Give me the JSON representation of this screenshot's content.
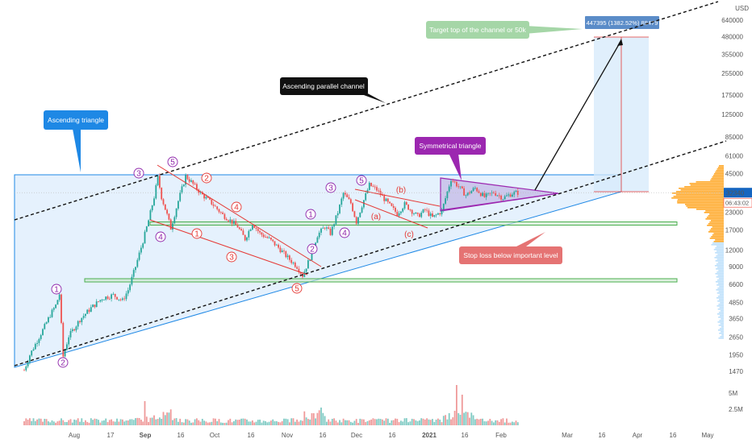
{
  "chart_data": {
    "type": "candlestick",
    "y_scale": "log",
    "currency": "USD",
    "y_ticks": [
      "640000",
      "480000",
      "355000",
      "255000",
      "175000",
      "125000",
      "85000",
      "61000",
      "45000",
      "32000",
      "23000",
      "17000",
      "12000",
      "9000",
      "6600",
      "4850",
      "3650",
      "2650",
      "1950",
      "1470"
    ],
    "y_tick_values": [
      640000,
      480000,
      355000,
      255000,
      175000,
      125000,
      85000,
      61000,
      45000,
      32000,
      23000,
      17000,
      12000,
      9000,
      6600,
      4850,
      3650,
      2650,
      1950,
      1470
    ],
    "x_ticks": [
      "Aug",
      "17",
      "Sep",
      "16",
      "Oct",
      "16",
      "Nov",
      "16",
      "Dec",
      "16",
      "2021",
      "16",
      "Feb",
      "Mar",
      "16",
      "Apr",
      "16",
      "May"
    ],
    "bold_x_ticks": [
      "Sep",
      "2021"
    ],
    "price_series": [
      {
        "t": 0,
        "p": 1500
      },
      {
        "t": 3,
        "p": 1950
      },
      {
        "t": 7,
        "p": 2500
      },
      {
        "t": 11,
        "p": 3200
      },
      {
        "t": 14,
        "p": 3900
      },
      {
        "t": 17,
        "p": 4600
      },
      {
        "t": 19,
        "p": 5600
      },
      {
        "t": 21,
        "p": 1900
      },
      {
        "t": 24,
        "p": 2700
      },
      {
        "t": 30,
        "p": 3600
      },
      {
        "t": 36,
        "p": 4400
      },
      {
        "t": 42,
        "p": 5200
      },
      {
        "t": 48,
        "p": 5500
      },
      {
        "t": 53,
        "p": 5000
      },
      {
        "t": 56,
        "p": 6000
      },
      {
        "t": 60,
        "p": 9000
      },
      {
        "t": 64,
        "p": 14000
      },
      {
        "t": 67,
        "p": 20000
      },
      {
        "t": 70,
        "p": 30000
      },
      {
        "t": 72,
        "p": 42000
      },
      {
        "t": 74,
        "p": 30000
      },
      {
        "t": 77,
        "p": 22000
      },
      {
        "t": 79,
        "p": 17500
      },
      {
        "t": 83,
        "p": 28000
      },
      {
        "t": 87,
        "p": 43000
      },
      {
        "t": 90,
        "p": 39000
      },
      {
        "t": 95,
        "p": 32000
      },
      {
        "t": 101,
        "p": 27000
      },
      {
        "t": 107,
        "p": 22000
      },
      {
        "t": 111,
        "p": 20000
      },
      {
        "t": 115,
        "p": 18000
      },
      {
        "t": 119,
        "p": 14500
      },
      {
        "t": 123,
        "p": 19000
      },
      {
        "t": 127,
        "p": 16000
      },
      {
        "t": 132,
        "p": 14500
      },
      {
        "t": 137,
        "p": 12500
      },
      {
        "t": 142,
        "p": 10500
      },
      {
        "t": 147,
        "p": 9000
      },
      {
        "t": 150,
        "p": 7700
      },
      {
        "t": 154,
        "p": 10500
      },
      {
        "t": 158,
        "p": 15500
      },
      {
        "t": 162,
        "p": 18000
      },
      {
        "t": 165,
        "p": 16000
      },
      {
        "t": 169,
        "p": 23000
      },
      {
        "t": 172,
        "p": 32000
      },
      {
        "t": 176,
        "p": 27000
      },
      {
        "t": 179,
        "p": 19500
      },
      {
        "t": 182,
        "p": 26000
      },
      {
        "t": 186,
        "p": 37000
      },
      {
        "t": 190,
        "p": 34000
      },
      {
        "t": 194,
        "p": 29000
      },
      {
        "t": 198,
        "p": 25000
      },
      {
        "t": 201,
        "p": 22500
      },
      {
        "t": 205,
        "p": 26500
      },
      {
        "t": 209,
        "p": 23500
      },
      {
        "t": 212,
        "p": 21500
      },
      {
        "t": 216,
        "p": 24000
      },
      {
        "t": 220,
        "p": 21000
      },
      {
        "t": 225,
        "p": 23500
      },
      {
        "t": 230,
        "p": 41000
      },
      {
        "t": 234,
        "p": 36000
      },
      {
        "t": 238,
        "p": 31000
      },
      {
        "t": 243,
        "p": 35000
      },
      {
        "t": 248,
        "p": 30000
      },
      {
        "t": 253,
        "p": 32500
      },
      {
        "t": 258,
        "p": 29500
      },
      {
        "t": 263,
        "p": 32000
      },
      {
        "t": 266,
        "p": 32340
      }
    ],
    "volume_scale_labels": [
      "5M",
      "2.5M"
    ],
    "horizontal_zones": [
      {
        "from": 18500,
        "to": 19500,
        "color": "#4caf50"
      },
      {
        "from": 6900,
        "to": 7300,
        "color": "#4caf50"
      }
    ],
    "projection": {
      "from_price": 32340,
      "to_price": 447395,
      "label": "447395 (1382.52%) 89479"
    },
    "last_price": "32340",
    "countdown": "06:43:02",
    "wave_labels_purple": [
      "1",
      "2",
      "3",
      "4",
      "5",
      "1",
      "2",
      "3",
      "4",
      "5",
      "3",
      "4",
      "5"
    ],
    "wave_labels_red": [
      "1",
      "2",
      "3",
      "4",
      "5",
      "(a)",
      "(b)",
      "(c)"
    ],
    "callouts": {
      "ascending_triangle": "Ascending triangle",
      "ascending_channel": "Ascending parallel channel",
      "target": "Target top of the channel or 50k",
      "symmetrical_triangle": "Symmetrical triangle",
      "stop_loss": "Stop loss below important level"
    },
    "colors": {
      "up": "#26a69a",
      "down": "#ef5350",
      "triangle": "#1e88e5",
      "sym_triangle": "#9c27b0",
      "volume_profile": "#ff9800",
      "price_label": "#1565c0",
      "countdown": "#f44336"
    }
  }
}
